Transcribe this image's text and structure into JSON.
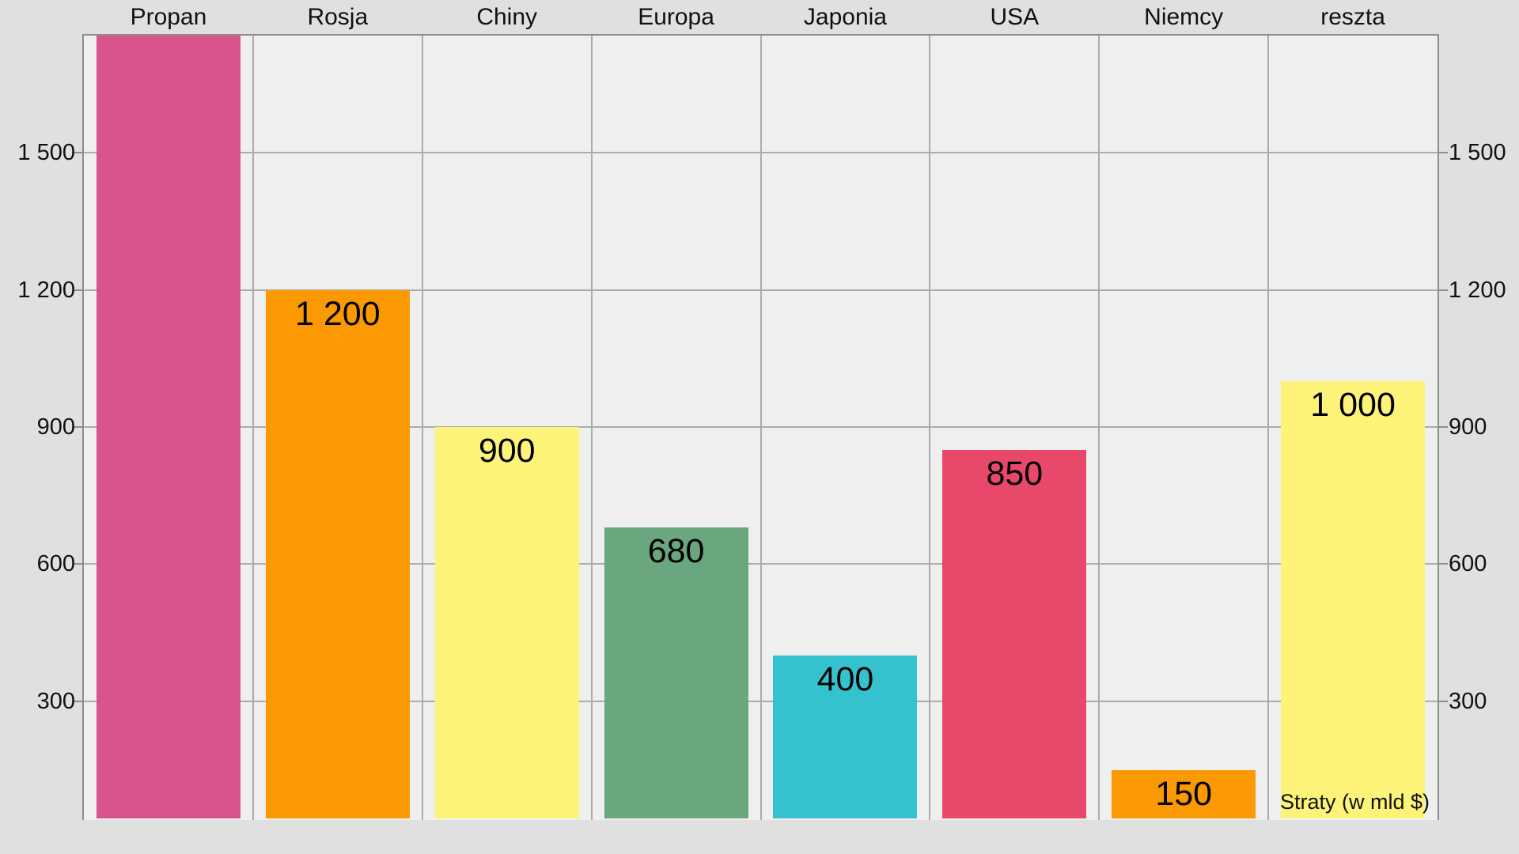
{
  "page": {
    "background_color": "#e0e0e0",
    "plot_background_color": "#efefef",
    "gridline_color": "#ababab",
    "axis_line_color": "#8d8d8d",
    "text_color": "#111111"
  },
  "chart_data": {
    "type": "bar",
    "title": "",
    "categories": [
      "Propan",
      "Rosja",
      "Chiny",
      "Europa",
      "Japonia",
      "USA",
      "Niemcy",
      "reszta"
    ],
    "series": [
      {
        "name": "Straty (w mld $)",
        "values": [
          null,
          1200,
          900,
          680,
          400,
          850,
          150,
          1000
        ]
      }
    ],
    "value_labels": [
      "",
      "1 200",
      "900",
      "680",
      "400",
      "850",
      "150",
      "1 000"
    ],
    "bar_colors": [
      "#d9538c",
      "#fb9902",
      "#fdf379",
      "#6aa77f",
      "#35c2cf",
      "#e8496b",
      "#fb9902",
      "#fdf379"
    ],
    "clipped_bars": [
      "Propan"
    ],
    "annotation": "Straty (w mld $)",
    "xlabel": "",
    "ylabel": "",
    "y_axis": {
      "ticks": [
        300,
        600,
        900,
        1200,
        1500
      ],
      "tick_labels": [
        "300",
        "600",
        "900",
        "1 200",
        "1 500"
      ],
      "visible_range": [
        44,
        1756
      ],
      "label_sides": [
        "left",
        "right"
      ],
      "grid": true
    },
    "category_labels_position": "top",
    "legend": "none"
  }
}
